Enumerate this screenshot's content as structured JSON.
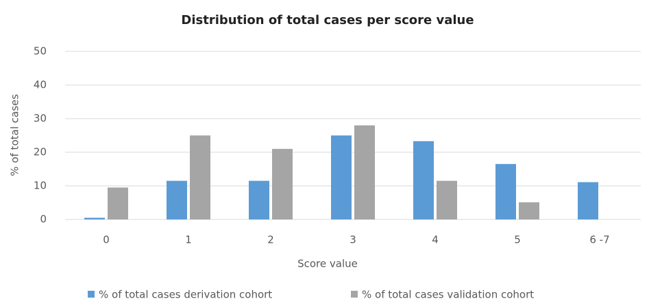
{
  "chart_data": {
    "type": "bar",
    "title": "Distribution of total cases per score value",
    "x_label": "Score value",
    "y_label": "% of total cases",
    "categories": [
      "0",
      "1",
      "2",
      "3",
      "4",
      "5",
      "6 -7"
    ],
    "series": [
      {
        "name": "% of total cases derivation cohort",
        "color": "#5b9bd5",
        "values": [
          0.5,
          11.5,
          11.5,
          25,
          23.3,
          16.5,
          11.1
        ]
      },
      {
        "name": "% of total cases validation cohort",
        "color": "#a5a5a5",
        "values": [
          9.5,
          25,
          21,
          28,
          11.5,
          5.1,
          0
        ]
      }
    ],
    "ylim": [
      0,
      50
    ],
    "yticks": [
      0,
      10,
      20,
      30,
      40,
      50
    ],
    "grid": true,
    "legend": "bottom"
  }
}
